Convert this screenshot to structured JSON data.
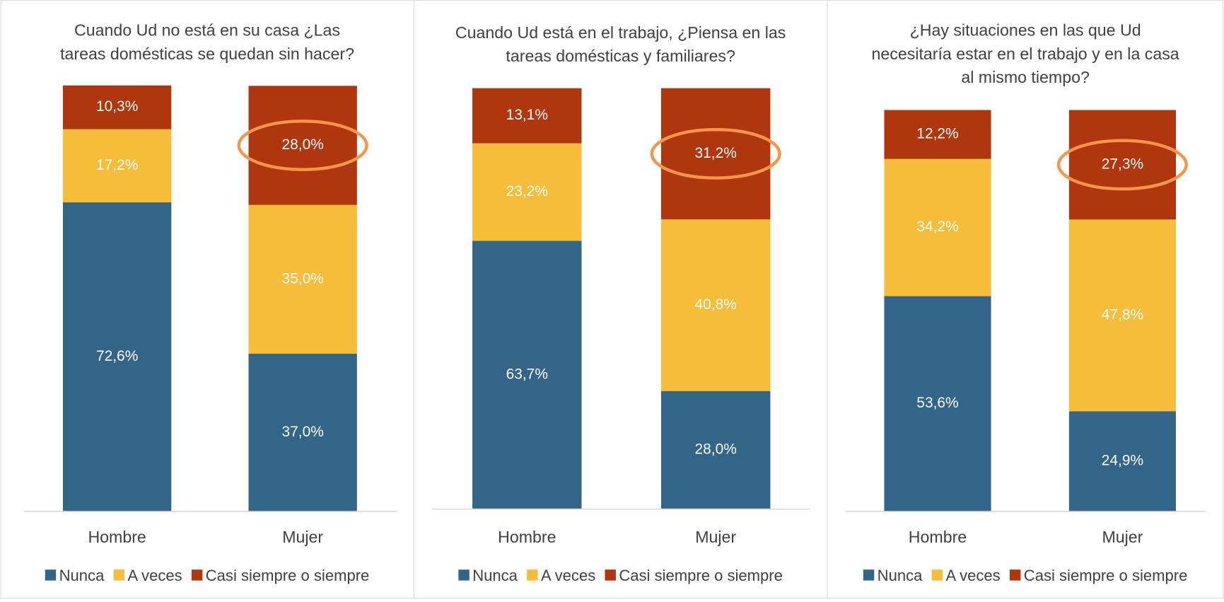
{
  "chart_data": [
    {
      "type": "bar",
      "stacked": true,
      "title": "Cuando Ud no está en su casa ¿Las tareas domésticas se quedan sin hacer?",
      "categories": [
        "Hombre",
        "Mujer"
      ],
      "ylim": [
        0,
        100
      ],
      "legend": "bottom",
      "series": [
        {
          "name": "Nunca",
          "color": "#336589",
          "values": [
            72.6,
            37.0
          ],
          "value_labels": [
            "72,6%",
            "37,0%"
          ]
        },
        {
          "name": "A veces",
          "color": "#F6BD3B",
          "values": [
            17.2,
            35.0
          ],
          "value_labels": [
            "17,2%",
            "35,0%"
          ]
        },
        {
          "name": "Casi siempre o siempre",
          "color": "#B0360E",
          "values": [
            10.3,
            28.0
          ],
          "value_labels": [
            "10,3%",
            "28,0%"
          ]
        }
      ]
    },
    {
      "type": "bar",
      "stacked": true,
      "title": "Cuando Ud está en el trabajo, ¿Piensa en las tareas domésticas y familiares?",
      "categories": [
        "Hombre",
        "Mujer"
      ],
      "ylim": [
        0,
        100
      ],
      "legend": "bottom",
      "series": [
        {
          "name": "Nunca",
          "color": "#336589",
          "values": [
            63.7,
            28.0
          ],
          "value_labels": [
            "63,7%",
            "28,0%"
          ]
        },
        {
          "name": "A veces",
          "color": "#F6BD3B",
          "values": [
            23.2,
            40.8
          ],
          "value_labels": [
            "23,2%",
            "40,8%"
          ]
        },
        {
          "name": "Casi siempre o siempre",
          "color": "#B0360E",
          "values": [
            13.1,
            31.2
          ],
          "value_labels": [
            "13,1%",
            "31,2%"
          ]
        }
      ]
    },
    {
      "type": "bar",
      "stacked": true,
      "title": "¿Hay situaciones en las que Ud necesitaría estar en el trabajo y en la casa al mismo tiempo?",
      "categories": [
        "Hombre",
        "Mujer"
      ],
      "ylim": [
        0,
        100
      ],
      "legend": "bottom",
      "series": [
        {
          "name": "Nunca",
          "color": "#336589",
          "values": [
            53.6,
            24.9
          ],
          "value_labels": [
            "53,6%",
            "24,9%"
          ]
        },
        {
          "name": "A veces",
          "color": "#F6BD3B",
          "values": [
            34.2,
            47.8
          ],
          "value_labels": [
            "34,2%",
            "47,8%"
          ]
        },
        {
          "name": "Casi siempre o siempre",
          "color": "#B0360E",
          "values": [
            12.2,
            27.3
          ],
          "value_labels": [
            "12,2%",
            "27,3%"
          ]
        }
      ]
    }
  ]
}
